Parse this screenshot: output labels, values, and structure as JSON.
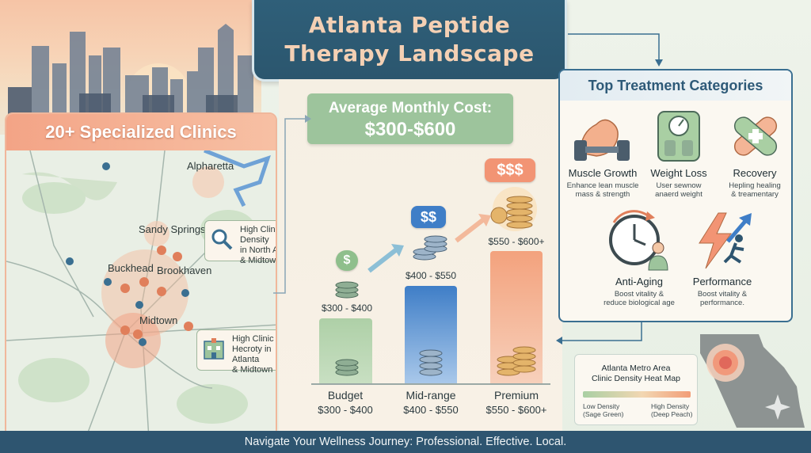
{
  "title": {
    "line1": "Atlanta Peptide",
    "line2": "Therapy Landscape"
  },
  "map": {
    "heading": "20+ Specialized Clinics",
    "cities": [
      "Alpharetta",
      "Sandy Springs",
      "Buckhead",
      "Brookhaven",
      "Midtown"
    ],
    "callout_top": {
      "line1": "High Clinic Density",
      "line2": "in North Atlanta",
      "line3": "& Midtown",
      "icon": "magnifier-icon"
    },
    "callout_bottom": {
      "line1": "High Clinic",
      "line2": "Hecroty in Atlanta",
      "line3": "& Midtown",
      "icon": "clinic-building-icon"
    }
  },
  "cost": {
    "banner_line1": "Average Monthly Cost:",
    "banner_line2": "$300-$600",
    "tiers": [
      {
        "badge": "$",
        "price": "$300 - $400",
        "name": "Budget",
        "range": "$300 - $400",
        "level": 0.33
      },
      {
        "badge": "$$",
        "price": "$400 - $550",
        "name": "Mid-range",
        "range": "$400 - $550",
        "level": 0.55
      },
      {
        "badge": "$$$",
        "price": "$550 - $600+",
        "name": "Premium",
        "range": "$550 - $600+",
        "level": 0.75
      }
    ]
  },
  "categories": {
    "heading": "Top Treatment Categories",
    "items": [
      {
        "title": "Muscle Growth",
        "desc1": "Enhance lean muscle",
        "desc2": "mass & strength",
        "icon": "flexed-arm-icon"
      },
      {
        "title": "Weight Loss",
        "desc1": "User sewnow",
        "desc2": "anaerd weight",
        "icon": "scale-icon"
      },
      {
        "title": "Recovery",
        "desc1": "Hepling healing",
        "desc2": "& treamentary",
        "icon": "bandage-icon"
      },
      {
        "title": "Anti-Aging",
        "desc1": "Boost vitality &",
        "desc2": "reduce biological age",
        "icon": "clock-person-icon"
      },
      {
        "title": "Performance",
        "desc1": "Boost vitality &",
        "desc2": "performance.",
        "icon": "lightning-runner-icon"
      }
    ]
  },
  "heatmap": {
    "title1": "Atlanta Metro Area",
    "title2": "Clinic Density Heat Map",
    "low1": "Low Density",
    "low2": "(Sage Green)",
    "high1": "High Density",
    "high2": "(Deep Peach)"
  },
  "footer": "Navigate Your Wellness Journey: Professional. Effective. Local.",
  "colors": {
    "peach": "#f3a486",
    "sage": "#9dc49c",
    "navy": "#2e5570",
    "blue": "#3f7ec7"
  }
}
